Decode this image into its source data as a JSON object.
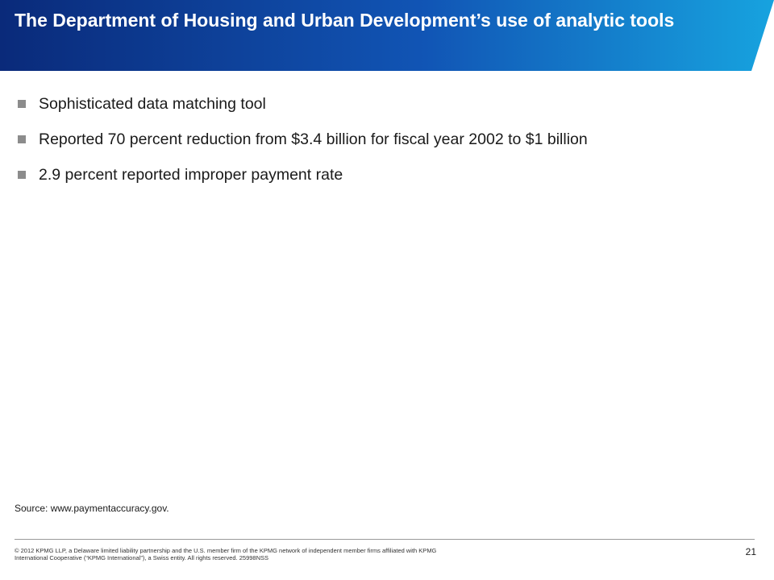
{
  "slide": {
    "title": "The Department of Housing and Urban Development’s use of analytic tools",
    "bullets": [
      "Sophisticated data matching tool",
      "Reported 70 percent reduction from $3.4 billion for fiscal year 2002 to $1 billion",
      "2.9 percent reported improper payment rate"
    ],
    "source": "Source: www.paymentaccuracy.gov."
  },
  "footer": {
    "copyright": "© 2012 KPMG LLP, a Delaware limited liability partnership and the U.S. member firm of the KPMG network of independent member firms affiliated with KPMG International Cooperative (“KPMG International”), a Swiss entity. All rights reserved. 25998NSS",
    "page_number": "21"
  },
  "colors": {
    "title_gradient_start": "#0a2a7a",
    "title_gradient_end": "#17a3df",
    "bullet_marker": "#8c8c8c"
  }
}
